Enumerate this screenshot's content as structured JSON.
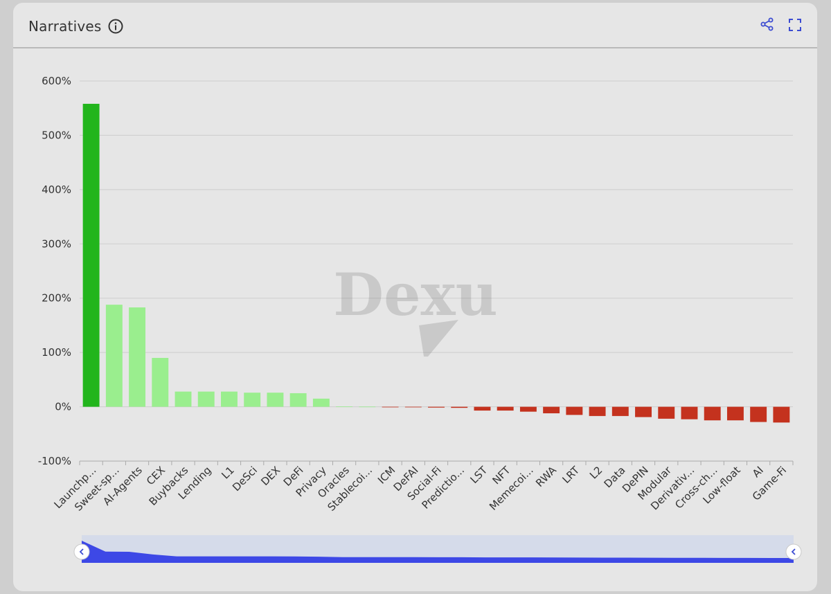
{
  "header": {
    "title": "Narratives",
    "icons": [
      "info-icon",
      "share-icon",
      "fullscreen-icon"
    ]
  },
  "watermark": "Dexu",
  "colors": {
    "top_positive": "#22b51c",
    "positive": "#9aee8e",
    "negative": "#c4321e",
    "slider_fill": "#3d48e6",
    "slider_window": "#d5dbea"
  },
  "chart_data": {
    "type": "bar",
    "title": "",
    "xlabel": "",
    "ylabel": "",
    "ylim": [
      -100,
      600
    ],
    "yticks": [
      "600%",
      "500%",
      "400%",
      "300%",
      "200%",
      "100%",
      "0%",
      "-100%"
    ],
    "ytick_values": [
      600,
      500,
      400,
      300,
      200,
      100,
      0,
      -100
    ],
    "grid": true,
    "categories": [
      "Launchp...",
      "Sweet-sp...",
      "AI-Agents",
      "CEX",
      "Buybacks",
      "Lending",
      "L1",
      "DeSci",
      "DEX",
      "DeFi",
      "Privacy",
      "Oracles",
      "Stablecoi...",
      "ICM",
      "DeFAI",
      "Social-Fi",
      "Predictio...",
      "LST",
      "NFT",
      "Memecoi...",
      "RWA",
      "LRT",
      "L2",
      "Data",
      "DePIN",
      "Modular",
      "Derivativ...",
      "Cross-ch...",
      "Low-float",
      "AI",
      "Game-Fi"
    ],
    "values": [
      558,
      188,
      183,
      90,
      28,
      28,
      28,
      26,
      26,
      25,
      15,
      0.5,
      0.3,
      -0.5,
      -1,
      -1.5,
      -2,
      -7,
      -7,
      -9,
      -12,
      -15,
      -17,
      -17,
      -19,
      -22,
      -23,
      -25,
      -25,
      -28,
      -29
    ]
  }
}
